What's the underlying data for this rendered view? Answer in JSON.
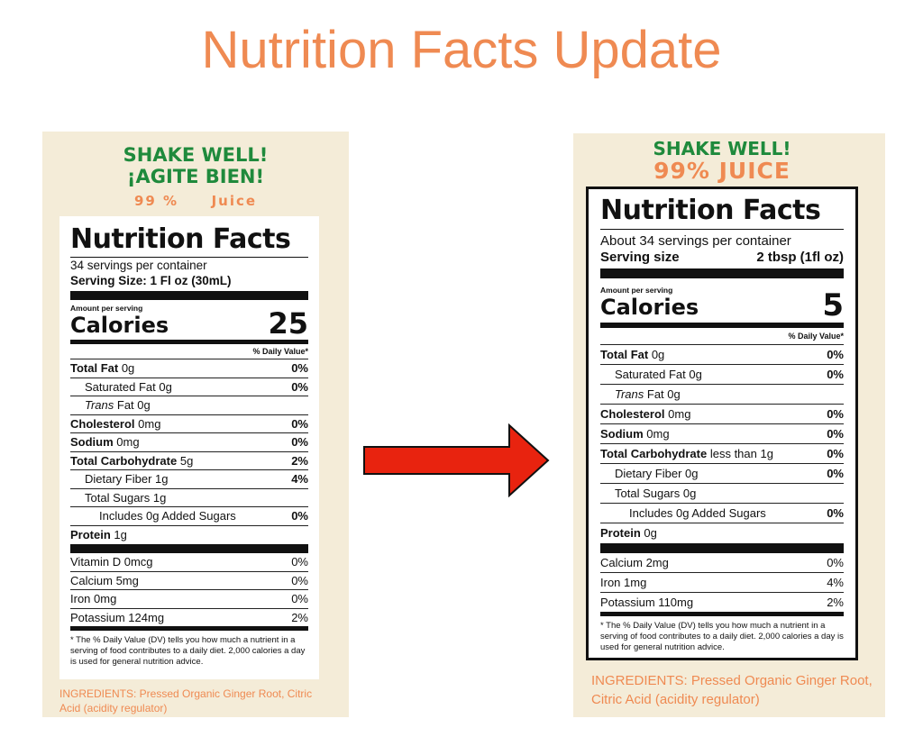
{
  "page_title": "Nutrition Facts Update",
  "old_label": {
    "shake_en": "SHAKE WELL!",
    "shake_es": "¡AGITE BIEN!",
    "juice_pct": "99 %",
    "juice_word": "Juice",
    "title": "Nutrition Facts",
    "servings": "34 servings per container",
    "serving_size": "Serving Size: 1 Fl oz (30mL)",
    "amount_per": "Amount per serving",
    "calories_label": "Calories",
    "calories_value": "25",
    "dv_header": "% Daily Value*",
    "rows": [
      {
        "name": "Total Fat",
        "amt": "0g",
        "dv": "0%"
      },
      {
        "name": "Saturated Fat",
        "amt": "0g",
        "dv": "0%"
      },
      {
        "name": "Trans",
        "amt": "Fat 0g",
        "dv": ""
      },
      {
        "name": "Cholesterol",
        "amt": "0mg",
        "dv": "0%"
      },
      {
        "name": "Sodium",
        "amt": "0mg",
        "dv": "0%"
      },
      {
        "name": "Total Carbohydrate",
        "amt": "5g",
        "dv": "2%"
      },
      {
        "name": "Dietary Fiber",
        "amt": "1g",
        "dv": "4%"
      },
      {
        "name": "Total Sugars",
        "amt": "1g",
        "dv": ""
      },
      {
        "name": "Includes 0g Added Sugars",
        "amt": "",
        "dv": "0%"
      },
      {
        "name": "Protein",
        "amt": "1g",
        "dv": ""
      }
    ],
    "vitamins": [
      {
        "name": "Vitamin D 0mcg",
        "dv": "0%"
      },
      {
        "name": "Calcium 5mg",
        "dv": "0%"
      },
      {
        "name": "Iron 0mg",
        "dv": "0%"
      },
      {
        "name": "Potassium 124mg",
        "dv": "2%"
      }
    ],
    "footnote": "* The % Daily Value (DV) tells you how much a nutrient in a serving of food contributes to a daily diet. 2,000 calories a day is used for general nutrition advice.",
    "ingredients": "INGREDIENTS: Pressed Organic Ginger Root, Citric Acid (acidity regulator)"
  },
  "new_label": {
    "shake_en": "SHAKE WELL!",
    "juice": "99% JUICE",
    "title": "Nutrition Facts",
    "servings": "About 34 servings per container",
    "serving_size_label": "Serving size",
    "serving_size_value": "2 tbsp (1fl oz)",
    "amount_per": "Amount per serving",
    "calories_label": "Calories",
    "calories_value": "5",
    "dv_header": "% Daily Value*",
    "rows": [
      {
        "name": "Total Fat",
        "amt": "0g",
        "dv": "0%"
      },
      {
        "name": "Saturated Fat",
        "amt": "0g",
        "dv": "0%"
      },
      {
        "name": "Trans",
        "amt": "Fat 0g",
        "dv": ""
      },
      {
        "name": "Cholesterol",
        "amt": "0mg",
        "dv": "0%"
      },
      {
        "name": "Sodium",
        "amt": "0mg",
        "dv": "0%"
      },
      {
        "name": "Total Carbohydrate",
        "amt": "less than 1g",
        "dv": "0%"
      },
      {
        "name": "Dietary Fiber",
        "amt": "0g",
        "dv": "0%"
      },
      {
        "name": "Total Sugars",
        "amt": "0g",
        "dv": ""
      },
      {
        "name": "Includes 0g Added Sugars",
        "amt": "",
        "dv": "0%"
      },
      {
        "name": "Protein",
        "amt": "0g",
        "dv": ""
      }
    ],
    "vitamins": [
      {
        "name": "Calcium 2mg",
        "dv": "0%"
      },
      {
        "name": "Iron 1mg",
        "dv": "4%"
      },
      {
        "name": "Potassium 110mg",
        "dv": "2%"
      }
    ],
    "footnote": "* The % Daily Value (DV) tells you how much a nutrient in a serving of food contributes to a daily diet. 2,000 calories a day is used for general nutrition advice.",
    "ingredients": "INGREDIENTS: Pressed Organic Ginger Root, Citric Acid (acidity regulator)"
  },
  "colors": {
    "title": "#ef8a52",
    "green": "#1f8a3c",
    "card_bg": "#f4ecd8",
    "arrow": "#e8230f"
  }
}
